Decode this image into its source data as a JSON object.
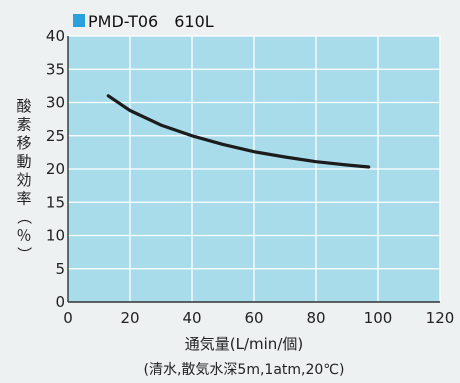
{
  "chart_data": {
    "type": "line",
    "title": "PMD-T06　610L",
    "legend_color": "#2aa0dc",
    "xlabel": "通気量(L/min/個)",
    "xnote": "(清水,散気水深5m,1atm,20℃)",
    "ylabel": "酸素移動効率（％）",
    "xlim": [
      0,
      120
    ],
    "ylim": [
      0,
      40
    ],
    "x_ticks": [
      0,
      20,
      40,
      60,
      80,
      100,
      120
    ],
    "y_ticks": [
      0,
      5,
      10,
      15,
      20,
      25,
      30,
      35,
      40
    ],
    "grid": true,
    "plot_background": "#a9dceb",
    "series": [
      {
        "color": "#1c1c1c",
        "x": [
          13,
          20,
          30,
          40,
          50,
          60,
          70,
          80,
          90,
          97
        ],
        "y": [
          31.0,
          28.8,
          26.6,
          25.0,
          23.7,
          22.6,
          21.8,
          21.1,
          20.6,
          20.3
        ]
      }
    ]
  }
}
